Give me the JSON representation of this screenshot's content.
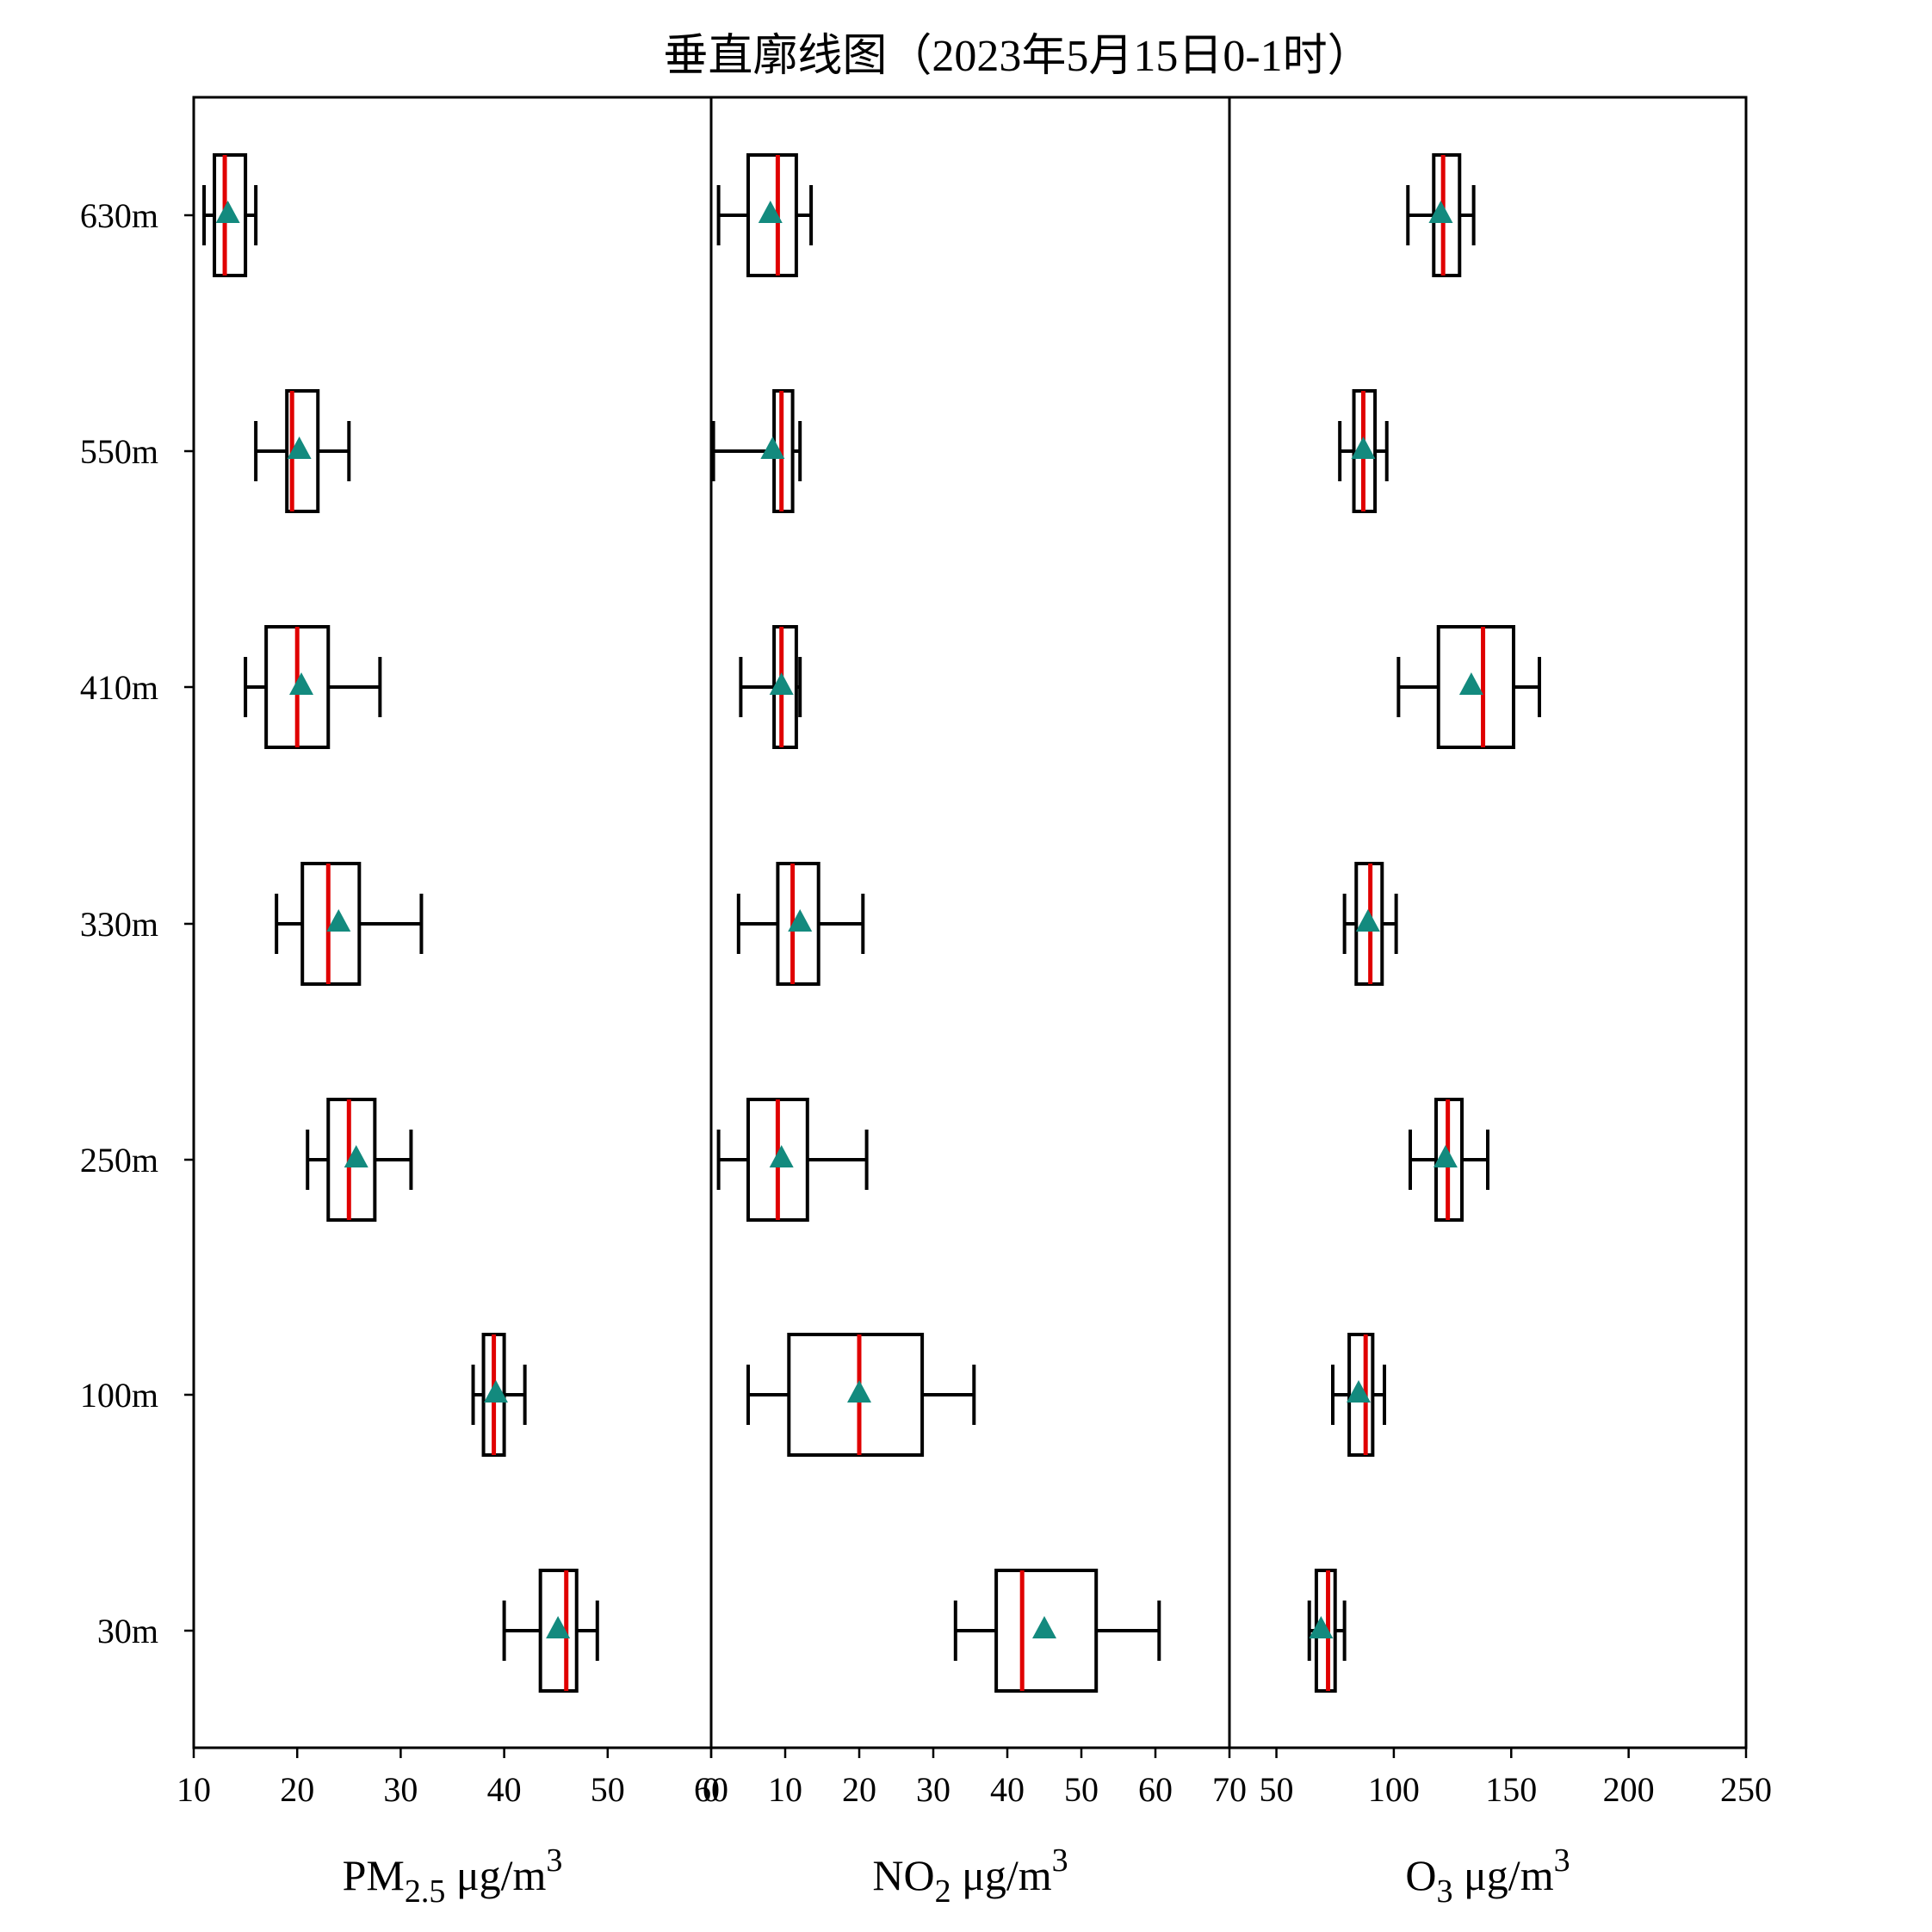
{
  "title": "垂直廓线图（2023年5月15日0-1时）",
  "chart_data": {
    "type": "box",
    "orientation": "horizontal",
    "title": "垂直廓线图（2023年5月15日0-1时）",
    "categories": [
      "630m",
      "550m",
      "410m",
      "330m",
      "250m",
      "100m",
      "30m"
    ],
    "colors": {
      "median": "#e00000",
      "mean": "#138a7e",
      "box": "#000000"
    },
    "panels": [
      {
        "id": "pm25",
        "xlabel": {
          "main": "PM",
          "sub": "2.5",
          "unit": " μg/m",
          "sup": "3"
        },
        "xlim": [
          10,
          60
        ],
        "xticks": [
          10,
          20,
          30,
          40,
          50,
          60
        ],
        "xtick_labels": [
          "10",
          "20",
          "30",
          "40",
          "50",
          "60"
        ],
        "boxes": [
          {
            "category": "630m",
            "min": 11,
            "q1": 12,
            "median": 13,
            "q3": 15,
            "max": 16,
            "mean": 13.3
          },
          {
            "category": "550m",
            "min": 16,
            "q1": 19,
            "median": 19.5,
            "q3": 22,
            "max": 25,
            "mean": 20.2
          },
          {
            "category": "410m",
            "min": 15,
            "q1": 17,
            "median": 20,
            "q3": 23,
            "max": 28,
            "mean": 20.4
          },
          {
            "category": "330m",
            "min": 18,
            "q1": 20.5,
            "median": 23,
            "q3": 26,
            "max": 32,
            "mean": 24
          },
          {
            "category": "250m",
            "min": 21,
            "q1": 23,
            "median": 25,
            "q3": 27.5,
            "max": 31,
            "mean": 25.7
          },
          {
            "category": "100m",
            "min": 37,
            "q1": 38,
            "median": 39,
            "q3": 40,
            "max": 42,
            "mean": 39.2
          },
          {
            "category": "30m",
            "min": 40,
            "q1": 43.5,
            "median": 46,
            "q3": 47,
            "max": 49,
            "mean": 45.2
          }
        ]
      },
      {
        "id": "no2",
        "xlabel": {
          "main": "NO",
          "sub": "2",
          "unit": " μg/m",
          "sup": "3"
        },
        "xlim": [
          0,
          70
        ],
        "xticks": [
          0,
          10,
          20,
          30,
          40,
          50,
          60,
          70
        ],
        "xtick_labels": [
          "0",
          "10",
          "20",
          "30",
          "40",
          "50",
          "60",
          "70"
        ],
        "boxes": [
          {
            "category": "630m",
            "min": 1,
            "q1": 5,
            "median": 9,
            "q3": 11.5,
            "max": 13.5,
            "mean": 8
          },
          {
            "category": "550m",
            "min": 0.3,
            "q1": 8.5,
            "median": 9.5,
            "q3": 11,
            "max": 12,
            "mean": 8.3
          },
          {
            "category": "410m",
            "min": 4,
            "q1": 8.5,
            "median": 9.5,
            "q3": 11.5,
            "max": 12,
            "mean": 9.5
          },
          {
            "category": "330m",
            "min": 3.7,
            "q1": 9,
            "median": 11,
            "q3": 14.5,
            "max": 20.5,
            "mean": 12
          },
          {
            "category": "250m",
            "min": 1,
            "q1": 5,
            "median": 9,
            "q3": 13,
            "max": 21,
            "mean": 9.5
          },
          {
            "category": "100m",
            "min": 5,
            "q1": 10.5,
            "median": 20,
            "q3": 28.5,
            "max": 35.5,
            "mean": 20
          },
          {
            "category": "30m",
            "min": 33,
            "q1": 38.5,
            "median": 42,
            "q3": 52,
            "max": 60.5,
            "mean": 45
          }
        ]
      },
      {
        "id": "o3",
        "xlabel": {
          "main": "O",
          "sub": "3",
          "unit": " μg/m",
          "sup": "3"
        },
        "xlim": [
          30,
          250
        ],
        "xticks": [
          50,
          100,
          150,
          200,
          250
        ],
        "xtick_labels": [
          "50",
          "100",
          "150",
          "200",
          "250"
        ],
        "boxes": [
          {
            "category": "630m",
            "min": 106,
            "q1": 117,
            "median": 121,
            "q3": 128,
            "max": 134,
            "mean": 120
          },
          {
            "category": "550m",
            "min": 77,
            "q1": 83,
            "median": 87,
            "q3": 92,
            "max": 97,
            "mean": 87
          },
          {
            "category": "410m",
            "min": 102,
            "q1": 119,
            "median": 138,
            "q3": 151,
            "max": 162,
            "mean": 133
          },
          {
            "category": "330m",
            "min": 79,
            "q1": 84,
            "median": 90,
            "q3": 95,
            "max": 101,
            "mean": 89
          },
          {
            "category": "250m",
            "min": 107,
            "q1": 118,
            "median": 123,
            "q3": 129,
            "max": 140,
            "mean": 122
          },
          {
            "category": "100m",
            "min": 74,
            "q1": 81,
            "median": 88,
            "q3": 91,
            "max": 96,
            "mean": 85
          },
          {
            "category": "30m",
            "min": 64,
            "q1": 67,
            "median": 72,
            "q3": 75,
            "max": 79,
            "mean": 69
          }
        ]
      }
    ]
  }
}
